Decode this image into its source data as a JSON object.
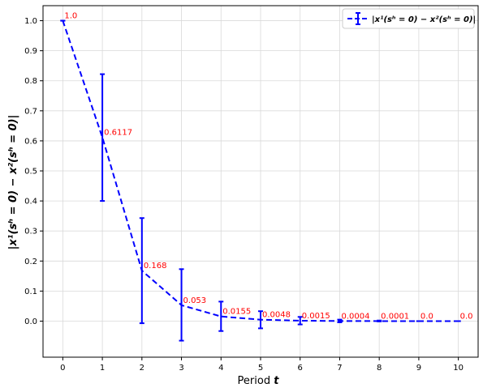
{
  "chart_data": {
    "type": "line",
    "xlabel_prefix": "Period",
    "xlabel_var": "t",
    "ylabel": "|x¹(sʰ = 0) − x²(sʰ = 0)|",
    "legend_label": "|x¹(sʰ = 0) − x²(sʰ = 0)|",
    "legend_position": "top-right",
    "grid": true,
    "xlim": [
      -0.5,
      10.5
    ],
    "ylim": [
      -0.12,
      1.05
    ],
    "x_ticks": [
      "0",
      "1",
      "2",
      "3",
      "4",
      "5",
      "6",
      "7",
      "8",
      "9",
      "10"
    ],
    "y_ticks": [
      "0.0",
      "0.1",
      "0.2",
      "0.3",
      "0.4",
      "0.5",
      "0.6",
      "0.7",
      "0.8",
      "0.9",
      "1.0"
    ],
    "series": [
      {
        "x": [
          0,
          1,
          2,
          3,
          4,
          5,
          6,
          7,
          8,
          9,
          10
        ],
        "values": [
          1.0,
          0.6117,
          0.168,
          0.053,
          0.0155,
          0.0048,
          0.0015,
          0.0004,
          0.0001,
          0.0,
          0.0
        ],
        "error_low": [
          1.0,
          0.4,
          -0.007,
          -0.065,
          -0.033,
          -0.024,
          -0.011,
          -0.004,
          -0.001,
          0.0,
          0.0
        ],
        "error_high": [
          1.0,
          0.822,
          0.343,
          0.173,
          0.065,
          0.033,
          0.014,
          0.005,
          0.002,
          0.0,
          0.0
        ],
        "color": "#0000ff",
        "line_style": "dashed"
      }
    ],
    "data_labels": [
      "1.0",
      "0.6117",
      "0.168",
      "0.053",
      "0.0155",
      "0.0048",
      "0.0015",
      "0.0004",
      "0.0001",
      "0.0",
      "0.0"
    ],
    "label_color": "#ff0000"
  }
}
